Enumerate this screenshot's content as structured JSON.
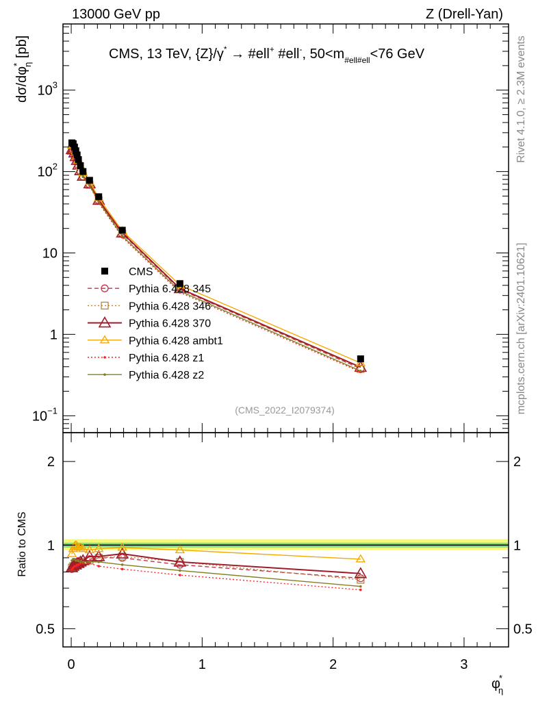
{
  "header": {
    "left": "13000 GeV pp",
    "right": "Z (Drell-Yan)"
  },
  "side": {
    "rivet": "Rivet 4.1.0, ≥ 2.3M events",
    "mcplots": "mcplots.cern.ch [arXiv:2401.10621]"
  },
  "title": {
    "p1": "CMS, 13 TeV, {Z}/γ",
    "p1sup": "*",
    "p2": " →  #ell",
    "p2sup": "+",
    "p3": " #ell",
    "p3sup": "-",
    "p4": ", 50<m",
    "p4sub": "#ell#ell",
    "p5": "<76 GeV"
  },
  "watermark": "(CMS_2022_I2079374)",
  "chart_data": {
    "type": "line",
    "xlabel": "φ*η",
    "xlabel_main": "φ",
    "xlabel_sup": "*",
    "xlabel_sub": "η",
    "ylabel": "dσ/dφ*η [pb]",
    "ylabel_parts": {
      "a": "dσ/dφ",
      "sup": "*",
      "sub": "η",
      "b": " [pb]"
    },
    "ratio_ylabel": "Ratio to CMS",
    "xlim": [
      -0.063,
      3.34
    ],
    "ylim": [
      0.062,
      6500
    ],
    "yscale": "log",
    "ratio_ylim": [
      0.43,
      2.54
    ],
    "ratio_yscale": "log",
    "x_ticks": [
      "0",
      "1",
      "2",
      "3"
    ],
    "y_ticks": [
      {
        "v": 0.1,
        "base": "10",
        "exp": "−1"
      },
      {
        "v": 1,
        "base": "1",
        "exp": ""
      },
      {
        "v": 10,
        "base": "10",
        "exp": ""
      },
      {
        "v": 100,
        "base": "10",
        "exp": "2"
      },
      {
        "v": 1000,
        "base": "10",
        "exp": "3"
      }
    ],
    "ratio_ticks": [
      "0.5",
      "1",
      "2"
    ],
    "legend_position": "middle-left",
    "x": [
      0.005,
      0.015,
      0.025,
      0.035,
      0.045,
      0.055,
      0.07,
      0.09,
      0.14,
      0.21,
      0.39,
      0.83,
      2.21
    ],
    "data": {
      "name": "CMS",
      "values": [
        225,
        220,
        200,
        180,
        160,
        140,
        118,
        100,
        78,
        49,
        19,
        4.2,
        0.5
      ],
      "color": "#000000"
    },
    "band": {
      "inner": [
        0.98,
        1.02
      ],
      "outer": [
        0.96,
        1.05
      ],
      "inner_color": "#7fe07f",
      "outer_color": "#f7f77a"
    },
    "series": [
      {
        "name": "Pythia 6.428 345",
        "color": "#c0304a",
        "dash": "6,4",
        "marker": "circle",
        "ratio": [
          0.82,
          0.83,
          0.83,
          0.84,
          0.84,
          0.85,
          0.86,
          0.87,
          0.89,
          0.9,
          0.9,
          0.85,
          0.76
        ]
      },
      {
        "name": "Pythia 6.428 346",
        "color": "#b8863b",
        "dash": "2,3",
        "marker": "square",
        "ratio": [
          0.83,
          0.84,
          0.84,
          0.85,
          0.85,
          0.86,
          0.86,
          0.87,
          0.88,
          0.9,
          0.91,
          0.87,
          0.75
        ]
      },
      {
        "name": "Pythia 6.428 370",
        "color": "#a01a2a",
        "dash": "",
        "marker": "triangle-big",
        "ratio": [
          0.83,
          0.84,
          0.85,
          0.85,
          0.86,
          0.86,
          0.87,
          0.88,
          0.91,
          0.91,
          0.93,
          0.87,
          0.79
        ]
      },
      {
        "name": "Pythia 6.428 ambt1",
        "color": "#f5a800",
        "dash": "",
        "marker": "triangle",
        "ratio": [
          0.93,
          0.97,
          0.99,
          1.0,
          0.99,
          0.98,
          0.98,
          0.97,
          0.96,
          0.97,
          0.98,
          0.96,
          0.89
        ]
      },
      {
        "name": "Pythia 6.428 z1",
        "color": "#ff2020",
        "dash": "2,3",
        "marker": "dot",
        "ratio": [
          0.82,
          0.83,
          0.84,
          0.84,
          0.85,
          0.85,
          0.86,
          0.86,
          0.86,
          0.84,
          0.82,
          0.78,
          0.69
        ]
      },
      {
        "name": "Pythia 6.428 z2",
        "color": "#808020",
        "dash": "",
        "marker": "dot",
        "ratio": [
          0.88,
          0.89,
          0.89,
          0.88,
          0.88,
          0.88,
          0.87,
          0.87,
          0.87,
          0.87,
          0.85,
          0.81,
          0.71
        ]
      }
    ]
  }
}
